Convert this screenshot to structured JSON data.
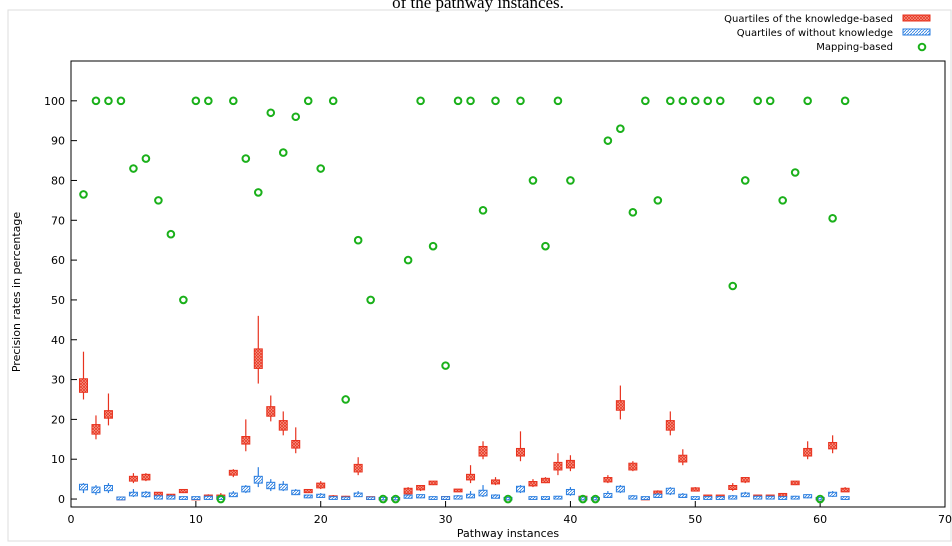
{
  "chart_data": {
    "type": "box",
    "title": "of the pathway instances.",
    "xlabel": "Pathway instances",
    "ylabel": "Precision rates in percentage",
    "xlim": [
      0,
      70
    ],
    "xticks": [
      0,
      10,
      20,
      30,
      40,
      50,
      60,
      70
    ],
    "ylim": [
      -2,
      110
    ],
    "yticks": [
      0,
      10,
      20,
      30,
      40,
      50,
      60,
      70,
      80,
      90,
      100
    ],
    "legend": "top-right",
    "x": [
      1,
      2,
      3,
      4,
      5,
      6,
      7,
      8,
      9,
      10,
      11,
      12,
      13,
      14,
      15,
      16,
      17,
      18,
      19,
      20,
      21,
      22,
      23,
      24,
      25,
      26,
      27,
      28,
      29,
      30,
      31,
      32,
      33,
      34,
      35,
      36,
      37,
      38,
      39,
      40,
      41,
      42,
      43,
      44,
      45,
      46,
      47,
      48,
      49,
      50,
      51,
      52,
      53,
      54,
      55,
      56,
      57,
      58,
      59,
      60,
      61,
      62
    ],
    "series": [
      {
        "name": "Quartiles of the knowledge-based",
        "type": "box",
        "color": "#e8321e",
        "values": [
          [
            25,
            27,
            30,
            37
          ],
          [
            15,
            16.5,
            18.5,
            21
          ],
          [
            18.5,
            20.5,
            22,
            26.5
          ],
          [
            0,
            0,
            0.3,
            0.5
          ],
          [
            4,
            4.7,
            5.5,
            6.5
          ],
          [
            4.5,
            5,
            6,
            6.5
          ],
          [
            0.5,
            1,
            1.5,
            1.5
          ],
          [
            0.5,
            0.7,
            1,
            1.2
          ],
          [
            1.5,
            1.8,
            2.2,
            2.5
          ],
          [
            0,
            0,
            0.3,
            0.5
          ],
          [
            0,
            0.4,
            0.8,
            1.2
          ],
          [
            0,
            0.4,
            0.8,
            1.5
          ],
          [
            5.5,
            6.2,
            7,
            7.5
          ],
          [
            12,
            14,
            15.5,
            20
          ],
          [
            29,
            33,
            37.5,
            46
          ],
          [
            19.5,
            21,
            23,
            26
          ],
          [
            16,
            17.5,
            19.5,
            22
          ],
          [
            11.5,
            13,
            14.5,
            18
          ],
          [
            1.5,
            1.8,
            2.2,
            2.5
          ],
          [
            2.5,
            3,
            3.8,
            4.5
          ],
          [
            0,
            0.3,
            0.6,
            1
          ],
          [
            0,
            0.2,
            0.5,
            0.8
          ],
          [
            6,
            7,
            8.5,
            10.5
          ],
          [
            0,
            0.1,
            0.4,
            0.5
          ],
          [
            0,
            0,
            0.1,
            0.2
          ],
          [
            0,
            0,
            0.1,
            0.2
          ],
          [
            1,
            1.5,
            2.5,
            3
          ],
          [
            2,
            2.5,
            3.2,
            3.5
          ],
          [
            3.5,
            3.8,
            4.3,
            4.5
          ],
          [
            0,
            0.1,
            0.4,
            0.6
          ],
          [
            1.8,
            2,
            2.3,
            2.5
          ],
          [
            4,
            5,
            6,
            8.5
          ],
          [
            10,
            11,
            13,
            14.5
          ],
          [
            3.5,
            4,
            4.6,
            5.5
          ],
          [
            0,
            0,
            0.1,
            0.2
          ],
          [
            9.5,
            11,
            12.5,
            17
          ],
          [
            3,
            3.5,
            4.2,
            5
          ],
          [
            4,
            4.3,
            5,
            5.5
          ],
          [
            6,
            7.5,
            9,
            11.5
          ],
          [
            7,
            8,
            9.5,
            11
          ],
          [
            0,
            0,
            0.5,
            1
          ],
          [
            0,
            0,
            0.1,
            0.2
          ],
          [
            4,
            4.5,
            5.2,
            6
          ],
          [
            20,
            22.5,
            24.5,
            28.5
          ],
          [
            7,
            7.5,
            8.8,
            9.5
          ],
          [
            0,
            0,
            0.3,
            0.5
          ],
          [
            0.8,
            1.2,
            1.8,
            2.2
          ],
          [
            16,
            17.5,
            19.5,
            22
          ],
          [
            8.5,
            9.5,
            10.8,
            12.5
          ],
          [
            2,
            2.2,
            2.6,
            3
          ],
          [
            0.2,
            0.5,
            0.8,
            1
          ],
          [
            0.2,
            0.5,
            0.8,
            1
          ],
          [
            2,
            2.6,
            3.2,
            4
          ],
          [
            4,
            4.5,
            5.2,
            5.5
          ],
          [
            0.2,
            0.5,
            0.8,
            1
          ],
          [
            0.2,
            0.5,
            0.8,
            1
          ],
          [
            0.5,
            0.8,
            1.2,
            1.5
          ],
          [
            3.5,
            3.8,
            4.3,
            4.5
          ],
          [
            10,
            11,
            12.5,
            14.5
          ],
          [
            0,
            0,
            0.1,
            0.2
          ],
          [
            11.5,
            12.8,
            14,
            16
          ],
          [
            1.8,
            2,
            2.5,
            3
          ]
        ]
      },
      {
        "name": "Quartiles of without knowledge",
        "type": "box",
        "color": "#2a7ee0",
        "values": [
          [
            1.5,
            2.5,
            3.5,
            4
          ],
          [
            1,
            1.8,
            2.8,
            3.5
          ],
          [
            1.5,
            2.3,
            3.2,
            4
          ],
          [
            0,
            0,
            0.3,
            0.5
          ],
          [
            0.5,
            1,
            1.5,
            2.5
          ],
          [
            0.3,
            0.8,
            1.5,
            2
          ],
          [
            0,
            0.2,
            0.6,
            1
          ],
          [
            0,
            0.2,
            0.6,
            1
          ],
          [
            0,
            0.1,
            0.4,
            0.6
          ],
          [
            0,
            0.1,
            0.4,
            0.6
          ],
          [
            0,
            0.1,
            0.5,
            0.8
          ],
          [
            0,
            0.1,
            0.4,
            0.6
          ],
          [
            0.5,
            0.8,
            1.3,
            2
          ],
          [
            1.5,
            2,
            3,
            3.5
          ],
          [
            3,
            4.2,
            5.5,
            8
          ],
          [
            2,
            2.8,
            4,
            5
          ],
          [
            2,
            2.5,
            3.5,
            4.5
          ],
          [
            1,
            1.3,
            2,
            2.5
          ],
          [
            0.2,
            0.5,
            0.8,
            1
          ],
          [
            0.3,
            0.6,
            1,
            1.5
          ],
          [
            0,
            0.1,
            0.4,
            0.6
          ],
          [
            0,
            0.1,
            0.3,
            0.5
          ],
          [
            0.5,
            0.8,
            1.3,
            2
          ],
          [
            0,
            0.1,
            0.3,
            0.5
          ],
          [
            0,
            0,
            0.2,
            0.3
          ],
          [
            0,
            0,
            0.2,
            0.3
          ],
          [
            0.2,
            0.4,
            0.8,
            1
          ],
          [
            0.2,
            0.5,
            0.9,
            1.2
          ],
          [
            0,
            0.1,
            0.4,
            0.6
          ],
          [
            0,
            0.1,
            0.4,
            0.6
          ],
          [
            0,
            0.2,
            0.6,
            1
          ],
          [
            0.2,
            0.5,
            1,
            2
          ],
          [
            0.5,
            1,
            2,
            3.5
          ],
          [
            0.2,
            0.4,
            0.8,
            1.2
          ],
          [
            0,
            0,
            0.2,
            0.3
          ],
          [
            1.5,
            2,
            3,
            3.5
          ],
          [
            0,
            0.1,
            0.4,
            0.6
          ],
          [
            0,
            0.1,
            0.4,
            0.6
          ],
          [
            0,
            0.2,
            0.5,
            0.8
          ],
          [
            0.8,
            1.3,
            2.2,
            3
          ],
          [
            0,
            0,
            0.3,
            0.5
          ],
          [
            0,
            0,
            0.2,
            0.3
          ],
          [
            0.3,
            0.6,
            1.2,
            2
          ],
          [
            1.5,
            2,
            3,
            3.5
          ],
          [
            0,
            0.2,
            0.6,
            1
          ],
          [
            0,
            0.1,
            0.4,
            0.6
          ],
          [
            0.3,
            0.6,
            1,
            1.5
          ],
          [
            1,
            1.5,
            2.5,
            3
          ],
          [
            0.3,
            0.6,
            1,
            1.5
          ],
          [
            0,
            0.1,
            0.4,
            0.6
          ],
          [
            0,
            0.1,
            0.4,
            0.6
          ],
          [
            0,
            0.1,
            0.4,
            0.6
          ],
          [
            0,
            0.2,
            0.6,
            1
          ],
          [
            0.5,
            0.8,
            1.3,
            1.8
          ],
          [
            0,
            0.2,
            0.5,
            0.8
          ],
          [
            0,
            0.2,
            0.5,
            0.8
          ],
          [
            0,
            0.1,
            0.4,
            0.6
          ],
          [
            0,
            0.2,
            0.5,
            0.8
          ],
          [
            0.2,
            0.5,
            0.9,
            1.2
          ],
          [
            0,
            0,
            0.2,
            0.3
          ],
          [
            0.5,
            0.9,
            1.5,
            2
          ],
          [
            0,
            0.1,
            0.4,
            0.6
          ]
        ]
      },
      {
        "name": "Mapping-based",
        "type": "scatter",
        "color": "#1ab01a",
        "values": [
          76.5,
          100,
          100,
          100,
          83,
          85.5,
          75,
          66.5,
          50,
          100,
          100,
          0,
          100,
          85.5,
          77,
          97,
          87,
          96,
          100,
          83,
          100,
          25,
          65,
          50,
          0,
          0,
          60,
          100,
          63.5,
          33.5,
          100,
          100,
          72.5,
          100,
          0,
          100,
          80,
          63.5,
          100,
          80,
          0,
          0,
          90,
          93,
          72,
          100,
          75,
          100,
          100,
          100,
          100,
          100,
          53.5,
          80,
          100,
          100,
          75,
          82,
          100,
          0,
          70.5,
          100
        ]
      }
    ]
  }
}
